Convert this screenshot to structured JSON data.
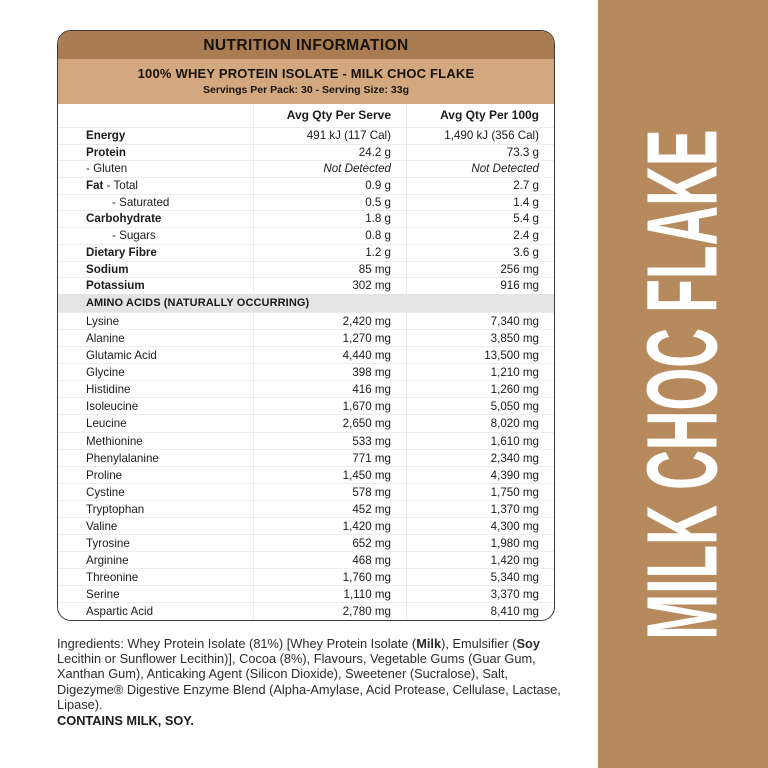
{
  "label": {
    "header": "NUTRITION INFORMATION",
    "product_title": "100% WHEY PROTEIN ISOLATE - MILK CHOC FLAKE",
    "serving_info": "Servings Per Pack: 30 - Serving Size: 33g",
    "columns": {
      "serve": "Avg Qty Per Serve",
      "per100": "Avg Qty Per 100g"
    },
    "nutrients": [
      {
        "bold": "Energy",
        "rest": "",
        "serve": "491 kJ (117 Cal)",
        "per100": "1,490 kJ (356 Cal)",
        "indent": false,
        "italic": false
      },
      {
        "bold": "Protein",
        "rest": "",
        "serve": "24.2 g",
        "per100": "73.3 g",
        "indent": false,
        "italic": false
      },
      {
        "bold": "",
        "rest": "- Gluten",
        "serve": "Not Detected",
        "per100": "Not Detected",
        "indent": false,
        "italic": true
      },
      {
        "bold": "Fat",
        "rest": " - Total",
        "serve": "0.9 g",
        "per100": "2.7 g",
        "indent": false,
        "italic": false
      },
      {
        "bold": "",
        "rest": "- Saturated",
        "serve": "0.5 g",
        "per100": "1.4 g",
        "indent": true,
        "italic": false
      },
      {
        "bold": "Carbohydrate",
        "rest": "",
        "serve": "1.8 g",
        "per100": "5.4 g",
        "indent": false,
        "italic": false
      },
      {
        "bold": "",
        "rest": "- Sugars",
        "serve": "0.8 g",
        "per100": "2.4 g",
        "indent": true,
        "italic": false
      },
      {
        "bold": "Dietary Fibre",
        "rest": "",
        "serve": "1.2 g",
        "per100": "3.6 g",
        "indent": false,
        "italic": false
      },
      {
        "bold": "Sodium",
        "rest": "",
        "serve": "85 mg",
        "per100": "256 mg",
        "indent": false,
        "italic": false
      },
      {
        "bold": "Potassium",
        "rest": "",
        "serve": "302 mg",
        "per100": "916 mg",
        "indent": false,
        "italic": false
      }
    ],
    "amino_header": "AMINO ACIDS (NATURALLY OCCURRING)",
    "amino_acids": [
      {
        "name": "Lysine",
        "serve": "2,420 mg",
        "per100": "7,340 mg"
      },
      {
        "name": "Alanine",
        "serve": "1,270 mg",
        "per100": "3,850 mg"
      },
      {
        "name": "Glutamic Acid",
        "serve": "4,440 mg",
        "per100": "13,500 mg"
      },
      {
        "name": "Glycine",
        "serve": "398 mg",
        "per100": "1,210 mg"
      },
      {
        "name": "Histidine",
        "serve": "416 mg",
        "per100": "1,260 mg"
      },
      {
        "name": "Isoleucine",
        "serve": "1,670 mg",
        "per100": "5,050 mg"
      },
      {
        "name": "Leucine",
        "serve": "2,650 mg",
        "per100": "8,020 mg"
      },
      {
        "name": "Methionine",
        "serve": "533 mg",
        "per100": "1,610 mg"
      },
      {
        "name": "Phenylalanine",
        "serve": "771 mg",
        "per100": "2,340 mg"
      },
      {
        "name": "Proline",
        "serve": "1,450 mg",
        "per100": "4,390 mg"
      },
      {
        "name": "Cystine",
        "serve": "578 mg",
        "per100": "1,750 mg"
      },
      {
        "name": "Tryptophan",
        "serve": "452 mg",
        "per100": "1,370 mg"
      },
      {
        "name": "Valine",
        "serve": "1,420 mg",
        "per100": "4,300 mg"
      },
      {
        "name": "Tyrosine",
        "serve": "652 mg",
        "per100": "1,980 mg"
      },
      {
        "name": "Arginine",
        "serve": "468 mg",
        "per100": "1,420 mg"
      },
      {
        "name": "Threonine",
        "serve": "1,760 mg",
        "per100": "5,340 mg"
      },
      {
        "name": "Serine",
        "serve": "1,110 mg",
        "per100": "3,370 mg"
      },
      {
        "name": "Aspartic Acid",
        "serve": "2,780 mg",
        "per100": "8,410 mg"
      }
    ]
  },
  "ingredients": {
    "segments": [
      {
        "text": "Ingredients: Whey Protein Isolate (81%) [Whey Protein Isolate (",
        "bold": false
      },
      {
        "text": "Milk",
        "bold": true
      },
      {
        "text": "), Emulsifier (",
        "bold": false
      },
      {
        "text": "Soy",
        "bold": true
      },
      {
        "text": " Lecithin or Sunflower Lecithin)], Cocoa (8%), Flavours, Vegetable Gums (Guar Gum, Xanthan Gum),  Anticaking Agent (Silicon Dioxide), Sweetener (Sucralose), Salt, Digezyme® Digestive Enzyme Blend (Alpha-Amylase, Acid Protease, Cellulase, Lactase, Lipase).",
        "bold": false
      }
    ],
    "contains": "CONTAINS MILK, SOY."
  },
  "sidebar": {
    "label": "MILK CHOC FLAKE"
  },
  "colors": {
    "header_brown": "#a97d51",
    "band_tan": "#d3a87f",
    "sidebar_brown": "#b68a5c"
  }
}
